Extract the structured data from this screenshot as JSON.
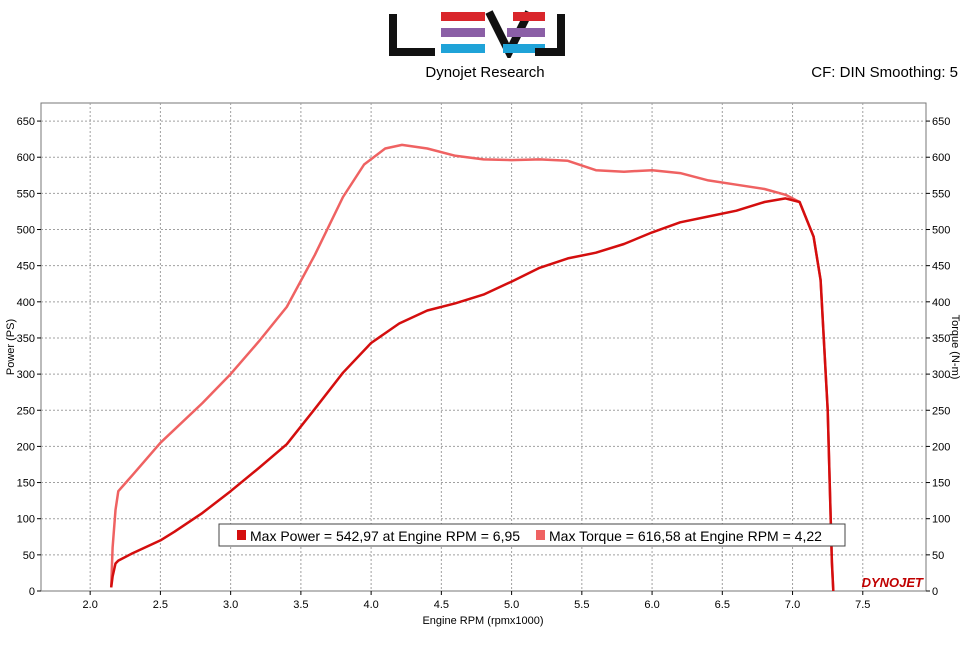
{
  "header": {
    "brand": "Dynojet Research",
    "correction_info": "CF: DIN Smoothing: 5"
  },
  "colors": {
    "power": "#d40e0e",
    "torque": "#ef6262",
    "grid": "#a0a0a0",
    "logo_red": "#d9262b",
    "logo_purple": "#8b5fa6",
    "logo_blue": "#1fa3d8"
  },
  "watermark": "DYNOJET",
  "chart_data": {
    "type": "line",
    "xlabel": "Engine RPM (rpmx1000)",
    "ylabel": "Power (PS)",
    "ylabel_right": "Torque (N-m)",
    "xlim": [
      1.65,
      7.95
    ],
    "ylim": [
      0,
      675
    ],
    "x_ticks": [
      2.0,
      2.5,
      3.0,
      3.5,
      4.0,
      4.5,
      5.0,
      5.5,
      6.0,
      6.5,
      7.0,
      7.5
    ],
    "x_tick_labels": [
      "2.0",
      "2.5",
      "3.0",
      "3.5",
      "4.0",
      "4.5",
      "5.0",
      "5.5",
      "6.0",
      "6.5",
      "7.0",
      "7.5"
    ],
    "y_ticks": [
      0,
      50,
      100,
      150,
      200,
      250,
      300,
      350,
      400,
      450,
      500,
      550,
      600,
      650
    ],
    "y_tick_labels": [
      "0",
      "50",
      "100",
      "150",
      "200",
      "250",
      "300",
      "350",
      "400",
      "450",
      "500",
      "550",
      "600",
      "650"
    ],
    "grid": true,
    "legend_position": "bottom-center",
    "series": [
      {
        "name": "Max Power = 542,97 at Engine RPM = 6,95",
        "points": [
          [
            2.15,
            5
          ],
          [
            2.16,
            20
          ],
          [
            2.18,
            38
          ],
          [
            2.2,
            42
          ],
          [
            2.3,
            52
          ],
          [
            2.5,
            70
          ],
          [
            2.6,
            82
          ],
          [
            2.8,
            108
          ],
          [
            3.0,
            138
          ],
          [
            3.2,
            170
          ],
          [
            3.4,
            203
          ],
          [
            3.6,
            252
          ],
          [
            3.8,
            302
          ],
          [
            4.0,
            343
          ],
          [
            4.2,
            370
          ],
          [
            4.4,
            388
          ],
          [
            4.6,
            398
          ],
          [
            4.8,
            410
          ],
          [
            5.0,
            428
          ],
          [
            5.2,
            447
          ],
          [
            5.4,
            460
          ],
          [
            5.6,
            468
          ],
          [
            5.8,
            480
          ],
          [
            6.0,
            496
          ],
          [
            6.2,
            510
          ],
          [
            6.4,
            518
          ],
          [
            6.6,
            526
          ],
          [
            6.8,
            538
          ],
          [
            6.95,
            543
          ],
          [
            7.05,
            538
          ],
          [
            7.15,
            490
          ],
          [
            7.2,
            430
          ],
          [
            7.25,
            250
          ],
          [
            7.28,
            40
          ],
          [
            7.29,
            0
          ]
        ]
      },
      {
        "name": "Max Torque = 616,58 at Engine RPM = 4,22",
        "points": [
          [
            2.15,
            5
          ],
          [
            2.16,
            60
          ],
          [
            2.18,
            112
          ],
          [
            2.2,
            138
          ],
          [
            2.3,
            160
          ],
          [
            2.5,
            205
          ],
          [
            2.8,
            260
          ],
          [
            3.0,
            300
          ],
          [
            3.2,
            345
          ],
          [
            3.4,
            393
          ],
          [
            3.6,
            465
          ],
          [
            3.8,
            545
          ],
          [
            3.95,
            590
          ],
          [
            4.1,
            612
          ],
          [
            4.22,
            617
          ],
          [
            4.4,
            612
          ],
          [
            4.6,
            602
          ],
          [
            4.8,
            597
          ],
          [
            5.0,
            596
          ],
          [
            5.2,
            597
          ],
          [
            5.4,
            595
          ],
          [
            5.6,
            582
          ],
          [
            5.8,
            580
          ],
          [
            6.0,
            582
          ],
          [
            6.2,
            578
          ],
          [
            6.4,
            568
          ],
          [
            6.6,
            562
          ],
          [
            6.8,
            556
          ],
          [
            6.95,
            548
          ],
          [
            7.05,
            538
          ],
          [
            7.15,
            490
          ],
          [
            7.2,
            430
          ],
          [
            7.25,
            250
          ],
          [
            7.28,
            40
          ],
          [
            7.29,
            0
          ]
        ]
      }
    ]
  }
}
